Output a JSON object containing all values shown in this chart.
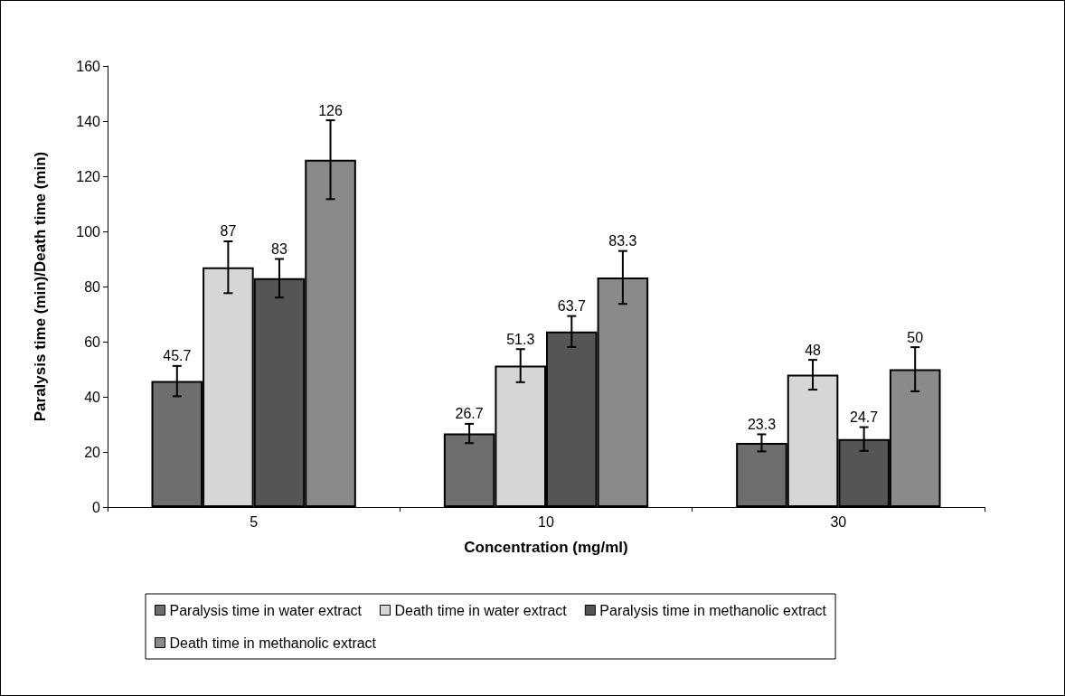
{
  "chart_data": {
    "type": "bar",
    "xlabel": "Concentration (mg/ml)",
    "ylabel": "Paralysis time (min)/Death time (min)",
    "categories": [
      "5",
      "10",
      "30"
    ],
    "series": [
      {
        "name": "Paralysis time in water extract",
        "color": "#6e6e6e",
        "values": [
          45.7,
          26.7,
          23.3
        ],
        "errors": [
          5.5,
          3.5,
          3.1
        ]
      },
      {
        "name": "Death time in water extract",
        "color": "#d6d6d6",
        "values": [
          87,
          51.3,
          48
        ],
        "errors": [
          9.4,
          6.0,
          5.4
        ]
      },
      {
        "name": "Paralysis time in methanolic extract",
        "color": "#555555",
        "values": [
          83,
          63.7,
          24.7
        ],
        "errors": [
          7.0,
          5.6,
          4.3
        ]
      },
      {
        "name": "Death time in methanolic extract",
        "color": "#8a8a8a",
        "values": [
          126,
          83.3,
          50
        ],
        "errors": [
          14.3,
          9.6,
          8.0
        ]
      }
    ],
    "ylim": [
      0,
      160
    ],
    "yticks": [
      0,
      20,
      40,
      60,
      80,
      100,
      120,
      140,
      160
    ],
    "grid": false,
    "legend": "bottom",
    "data_labels": true
  }
}
